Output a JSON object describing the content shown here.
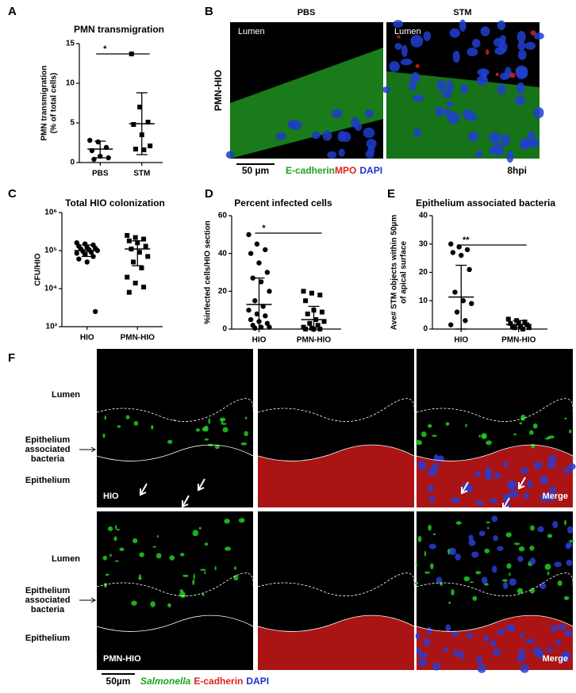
{
  "chart_data": [
    {
      "type": "dot",
      "title": "PMN transmigration",
      "ylabel": [
        "PMN transmigration",
        "(% of total cells)"
      ],
      "categories": [
        "PBS",
        "STM"
      ],
      "markers": [
        "circle",
        "square"
      ],
      "values": [
        [
          2.8,
          2.6,
          1.9,
          1.5,
          0.8,
          0.6,
          0.4
        ],
        [
          13.7,
          7.0,
          5.1,
          4.8,
          3.5,
          2.1,
          1.7,
          1.6
        ]
      ],
      "means": [
        1.7,
        4.9
      ],
      "lower": [
        0.6,
        1.0
      ],
      "upper": [
        2.7,
        8.8
      ],
      "ylim": [
        0,
        15
      ],
      "yticks": [
        0,
        5,
        10,
        15
      ],
      "significance": "*"
    },
    {
      "type": "dot",
      "title": "Total HIO colonization",
      "ylabel": [
        "CFU/HIO"
      ],
      "categories": [
        "HIO",
        "PMN-HIO"
      ],
      "markers": [
        "circle",
        "square"
      ],
      "log": true,
      "values": [
        [
          160000,
          150000,
          140000,
          130000,
          120000,
          115000,
          110000,
          105000,
          100000,
          95000,
          90000,
          85000,
          80000,
          70000,
          60000,
          50000,
          2500
        ],
        [
          250000,
          220000,
          200000,
          180000,
          160000,
          130000,
          110000,
          90000,
          70000,
          50000,
          35000,
          20000,
          14000,
          11000,
          8000
        ]
      ],
      "means": [
        100000,
        110000
      ],
      "lower": [
        70000,
        40000
      ],
      "upper": [
        140000,
        180000
      ],
      "ylim": [
        1000,
        1000000
      ],
      "yticks": [
        {
          "value": 1000,
          "label": "10³"
        },
        {
          "value": 10000,
          "label": "10⁴"
        },
        {
          "value": 100000,
          "label": "10⁵"
        },
        {
          "value": 1000000,
          "label": "10⁶"
        }
      ]
    },
    {
      "type": "dot",
      "title": "Percent infected cells",
      "ylabel": [
        "%infected cells/HIO section"
      ],
      "categories": [
        "HIO",
        "PMN-HIO"
      ],
      "markers": [
        "circle",
        "square"
      ],
      "values": [
        [
          50,
          45,
          42,
          40,
          35,
          30,
          27,
          25,
          20,
          15,
          12,
          10,
          8,
          7,
          5,
          4,
          3,
          2,
          1,
          1,
          0.5
        ],
        [
          20,
          19,
          18,
          15,
          10,
          9,
          8,
          5,
          4,
          3,
          2,
          1,
          0.5,
          0,
          0,
          0
        ]
      ],
      "means": [
        13,
        5
      ],
      "lower": [
        0,
        0
      ],
      "upper": [
        27,
        12
      ],
      "ylim": [
        0,
        60
      ],
      "yticks": [
        0,
        20,
        40,
        60
      ],
      "significance": "*"
    },
    {
      "type": "dot",
      "title": "Epithelium associated bacteria",
      "ylabel": [
        "Ave# STM objects within 50µm",
        "of apical surface"
      ],
      "categories": [
        "HIO",
        "PMN-HIO"
      ],
      "markers": [
        "circle",
        "square"
      ],
      "values": [
        [
          30,
          29,
          28,
          27,
          26,
          21,
          13,
          10,
          9,
          6,
          3,
          1.5
        ],
        [
          3.5,
          3,
          2.5,
          2,
          2,
          1.5,
          1,
          1,
          0.5,
          0.5,
          0
        ]
      ],
      "means": [
        11.3,
        1.6
      ],
      "lower": [
        0,
        0.5
      ],
      "upper": [
        22.5,
        3
      ],
      "ylim": [
        0,
        40
      ],
      "yticks": [
        0,
        10,
        20,
        30,
        40
      ],
      "significance": "**"
    }
  ],
  "figure": {
    "letters": [
      "A",
      "B",
      "C",
      "D",
      "E",
      "F"
    ],
    "panel_b": {
      "headers": [
        "PBS",
        "STM"
      ],
      "lumen": [
        "Lumen",
        "Lumen"
      ],
      "side": "PMN-HIO",
      "scale": "50 µm",
      "stain": [
        "E-cadherin",
        "MPO",
        "DAPI"
      ],
      "time": "8hpi"
    },
    "panel_f": {
      "rows": [
        {
          "lumen": "Lumen",
          "associated": [
            "Epithelium",
            "associated",
            "bacteria"
          ],
          "epithelium": "Epithelium",
          "name": "HIO",
          "merge": "Merge"
        },
        {
          "lumen": "Lumen",
          "associated": [
            "Epithelium",
            "associated",
            "bacteria"
          ],
          "epithelium": "Epithelium",
          "name": "PMN-HIO",
          "merge": "Merge"
        }
      ],
      "scale": "50µm",
      "stain": [
        "Salmonella",
        "E-cadherin",
        "DAPI"
      ]
    }
  }
}
